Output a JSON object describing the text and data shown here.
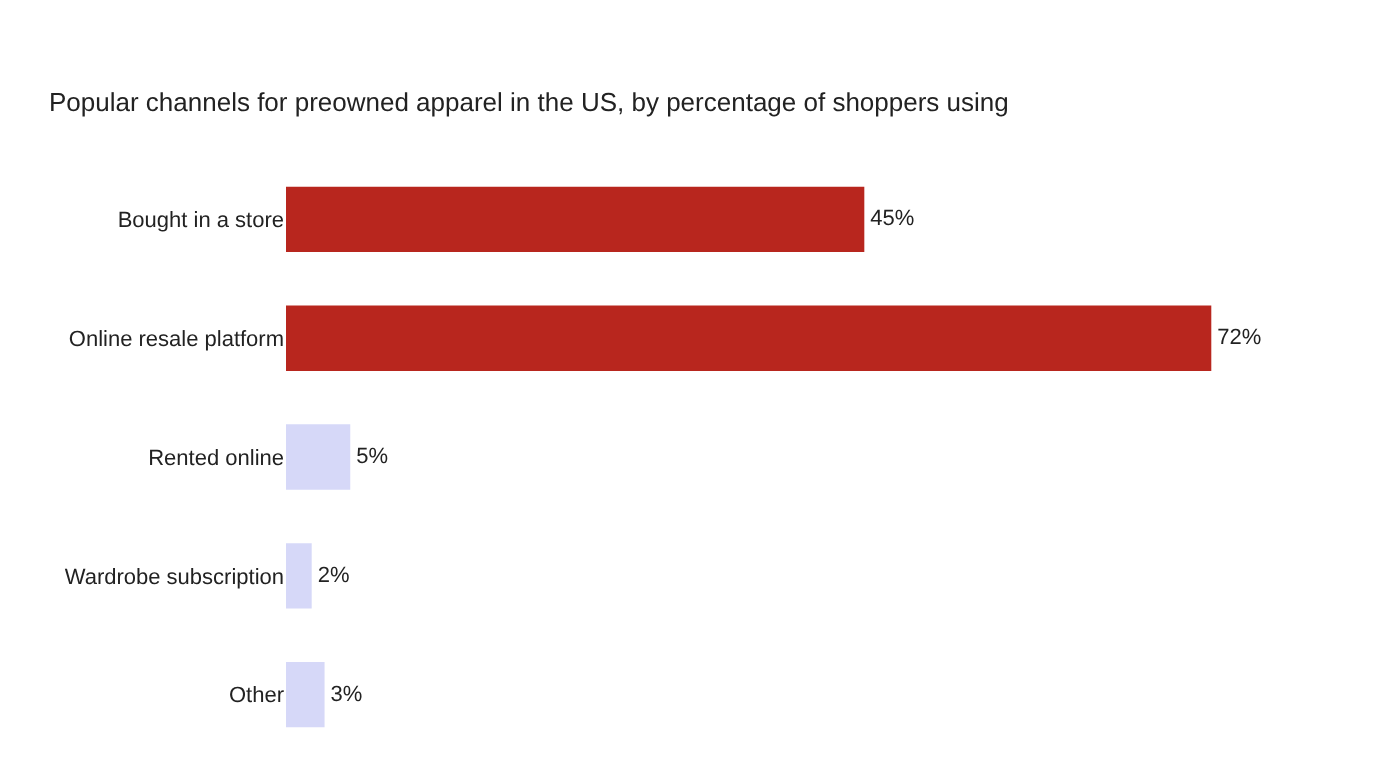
{
  "chart_data": {
    "type": "bar",
    "orientation": "horizontal",
    "title": "Popular channels for preowned apparel in the US, by percentage of shoppers using",
    "categories": [
      "Bought in a store",
      "Online resale platform",
      "Rented online",
      "Wardrobe subscription",
      "Other"
    ],
    "values": [
      45,
      72,
      5,
      2,
      3
    ],
    "value_labels": [
      "45%",
      "72%",
      "5%",
      "2%",
      "3%"
    ],
    "colors": [
      "#b8261e",
      "#b8261e",
      "#d6d8f8",
      "#d6d8f8",
      "#d6d8f8"
    ]
  }
}
